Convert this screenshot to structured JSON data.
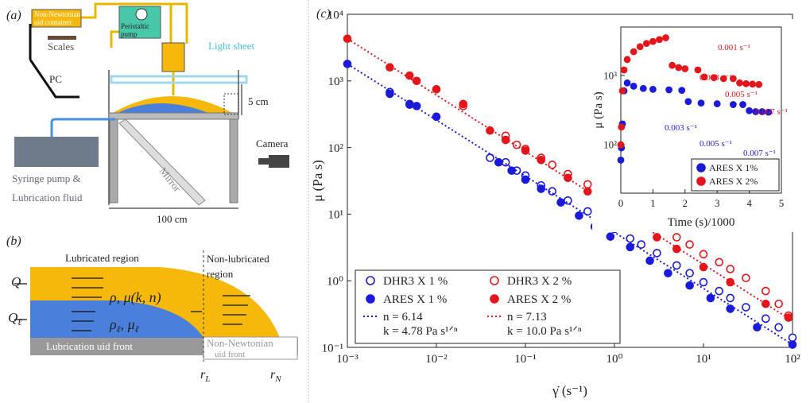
{
  "panel_a": {
    "label": "(a)",
    "container": [
      "Non-Newtonian",
      "uid container"
    ],
    "pump": [
      "Peristaltic",
      "pump"
    ],
    "scales": "Scales",
    "pc": "PC",
    "light_sheet": "Light sheet",
    "height": "5 cm",
    "camera": "Camera",
    "syringe": [
      "Syringe pump &",
      "Lubrication fluid"
    ],
    "mirror": "Mirror",
    "width": "100 cm"
  },
  "panel_b": {
    "label": "(b)",
    "lubricated": "Lubricated region",
    "non_lubricated": [
      "Non-lubricated",
      "region"
    ],
    "q": "Q",
    "q_l": [
      "Q",
      "ℓ"
    ],
    "upper_fluid": "ρ, μ(k, n)",
    "lower_fluid": [
      "ρ",
      "ℓ",
      ", μ",
      "ℓ"
    ],
    "lub_front": "Lubrication uid front",
    "nn_front": [
      "Non-Newtonian",
      "uid front"
    ],
    "r_l": [
      "r",
      "L"
    ],
    "r_n": [
      "r",
      "N"
    ]
  },
  "chart_data": [
    {
      "type": "scatter",
      "panel_label": "(c)",
      "xlabel": "γ̇ (s⁻¹)",
      "ylabel": "μ (Pa s)",
      "xscale": "log",
      "yscale": "log",
      "xlim": [
        0.001,
        100
      ],
      "ylim": [
        0.1,
        10000
      ],
      "xticks": [
        {
          "value": 0.001,
          "label": "10⁻³"
        },
        {
          "value": 0.01,
          "label": "10⁻²"
        },
        {
          "value": 0.1,
          "label": "10⁻¹"
        },
        {
          "value": 1,
          "label": "10⁰"
        },
        {
          "value": 10,
          "label": "10¹"
        },
        {
          "value": 100,
          "label": "10²"
        }
      ],
      "yticks": [
        {
          "value": 0.1,
          "label": "10⁻¹"
        },
        {
          "value": 1,
          "label": "10⁰"
        },
        {
          "value": 10,
          "label": "10¹"
        },
        {
          "value": 100,
          "label": "10²"
        },
        {
          "value": 1000,
          "label": "10³"
        },
        {
          "value": 10000,
          "label": "10⁴"
        }
      ],
      "series": [
        {
          "name": "DHR3 X 1 %",
          "color": "#1a1ad8",
          "marker": "open",
          "x": [
            0.003,
            0.005,
            0.04,
            0.06,
            0.08,
            0.1,
            0.15,
            0.2,
            0.3,
            0.5,
            0.7,
            1,
            1.5,
            2,
            3,
            5,
            7,
            10,
            15,
            20,
            30,
            50,
            70,
            100
          ],
          "values": [
            680,
            450,
            70,
            60,
            45,
            38,
            27,
            22,
            16,
            11,
            8,
            6,
            4.3,
            3.5,
            2.6,
            1.7,
            1.3,
            0.95,
            0.7,
            0.55,
            0.4,
            0.27,
            0.2,
            0.14
          ]
        },
        {
          "name": "ARES X 1 %",
          "color": "#1a1ad8",
          "marker": "filled",
          "x": [
            0.001,
            0.003,
            0.005,
            0.006,
            0.01,
            0.05,
            0.07,
            0.1,
            0.15,
            0.25,
            0.4,
            0.6,
            0.9,
            1.5,
            2.5,
            4,
            7,
            12,
            20,
            40,
            100
          ],
          "values": [
            1800,
            640,
            440,
            420,
            290,
            60,
            45,
            33,
            24,
            15,
            9.5,
            6.5,
            4.6,
            3.2,
            2,
            1.3,
            0.85,
            0.55,
            0.38,
            0.2,
            0.11
          ]
        },
        {
          "name": "DHR3 X 2 %",
          "color": "#e3161c",
          "marker": "open",
          "x": [
            0.02,
            0.06,
            0.08,
            0.1,
            0.15,
            0.2,
            0.3,
            0.5,
            0.7,
            1,
            1.5,
            2,
            3,
            5,
            7,
            10,
            15,
            20,
            30,
            50,
            70,
            90
          ],
          "values": [
            420,
            150,
            110,
            95,
            70,
            55,
            40,
            28,
            21,
            15,
            11,
            9,
            6.5,
            4.5,
            3.5,
            2.5,
            1.9,
            1.5,
            1.1,
            0.7,
            0.45,
            0.3
          ]
        },
        {
          "name": "ARES X 2 %",
          "color": "#e3161c",
          "marker": "filled",
          "x": [
            0.001,
            0.003,
            0.005,
            0.006,
            0.01,
            0.02,
            0.04,
            0.06,
            0.1,
            0.15,
            0.3,
            0.5,
            1,
            1.5,
            3,
            5,
            10,
            20,
            50,
            90
          ],
          "values": [
            4300,
            1600,
            1200,
            1000,
            750,
            450,
            180,
            130,
            90,
            65,
            35,
            22,
            12,
            8,
            4.5,
            3,
            1.6,
            0.95,
            0.45,
            0.28
          ]
        },
        {
          "name": "n = 6.14",
          "note": "k = 4.78 Pa s¹ᐟⁿ",
          "color": "#1a1ad8",
          "marker": "dotted-line",
          "x": [
            0.001,
            100
          ],
          "values": [
            1800,
            0.11
          ]
        },
        {
          "name": "n = 7.13",
          "note": "k = 10.0 Pa s¹ᐟⁿ",
          "color": "#e3161c",
          "marker": "dotted-line",
          "x": [
            0.001,
            100
          ],
          "values": [
            4300,
            0.25
          ]
        }
      ]
    },
    {
      "type": "scatter",
      "xlabel": "Time (s)/1000",
      "ylabel": "μ (Pa s)",
      "xscale": "linear",
      "yscale": "log",
      "xlim": [
        0,
        5
      ],
      "ylim": [
        20,
        5000
      ],
      "xticks": [
        0,
        1,
        2,
        3,
        4,
        5
      ],
      "yticks": [
        {
          "value": 100,
          "label": "10²"
        },
        {
          "value": 1000,
          "label": "10³"
        }
      ],
      "series": [
        {
          "name": "ARES X 1%",
          "color": "#1a1ad8",
          "marker": "filled",
          "x": [
            0,
            0.02,
            0.05,
            0.1,
            0.2,
            0.4,
            0.7,
            1,
            1.5,
            1.9,
            2.1,
            2.5,
            3,
            3.5,
            3.8,
            4,
            4.2,
            4.4,
            4.6
          ],
          "values": [
            60,
            90,
            200,
            600,
            780,
            700,
            650,
            630,
            620,
            610,
            420,
            400,
            390,
            380,
            380,
            310,
            300,
            300,
            295
          ]
        },
        {
          "name": "ARES X 2%",
          "color": "#e3161c",
          "marker": "filled",
          "x": [
            0,
            0.02,
            0.05,
            0.1,
            0.2,
            0.4,
            0.6,
            0.8,
            1,
            1.2,
            1.4,
            1.6,
            1.8,
            2,
            2.4,
            2.6,
            2.9,
            3.2,
            3.5,
            3.7,
            3.9,
            4.1,
            4.3
          ],
          "values": [
            100,
            180,
            600,
            1200,
            1700,
            2200,
            2600,
            2900,
            3100,
            3300,
            3500,
            1400,
            1300,
            1250,
            1200,
            950,
            930,
            900,
            900,
            780,
            760,
            750,
            740
          ]
        }
      ],
      "annotations": [
        {
          "text": "0.001 s⁻¹",
          "color": "#e3161c"
        },
        {
          "text": "0.003 s⁻¹",
          "color": "#e3161c"
        },
        {
          "text": "0.005 s⁻¹",
          "color": "#e3161c"
        },
        {
          "text": "0.007 s⁻¹",
          "color": "#e3161c"
        },
        {
          "text": "0.003 s⁻¹",
          "color": "#1a1ad8"
        },
        {
          "text": "0.005 s⁻¹",
          "color": "#1a1ad8"
        },
        {
          "text": "0.007 s⁻¹",
          "color": "#1a1ad8"
        }
      ]
    }
  ]
}
